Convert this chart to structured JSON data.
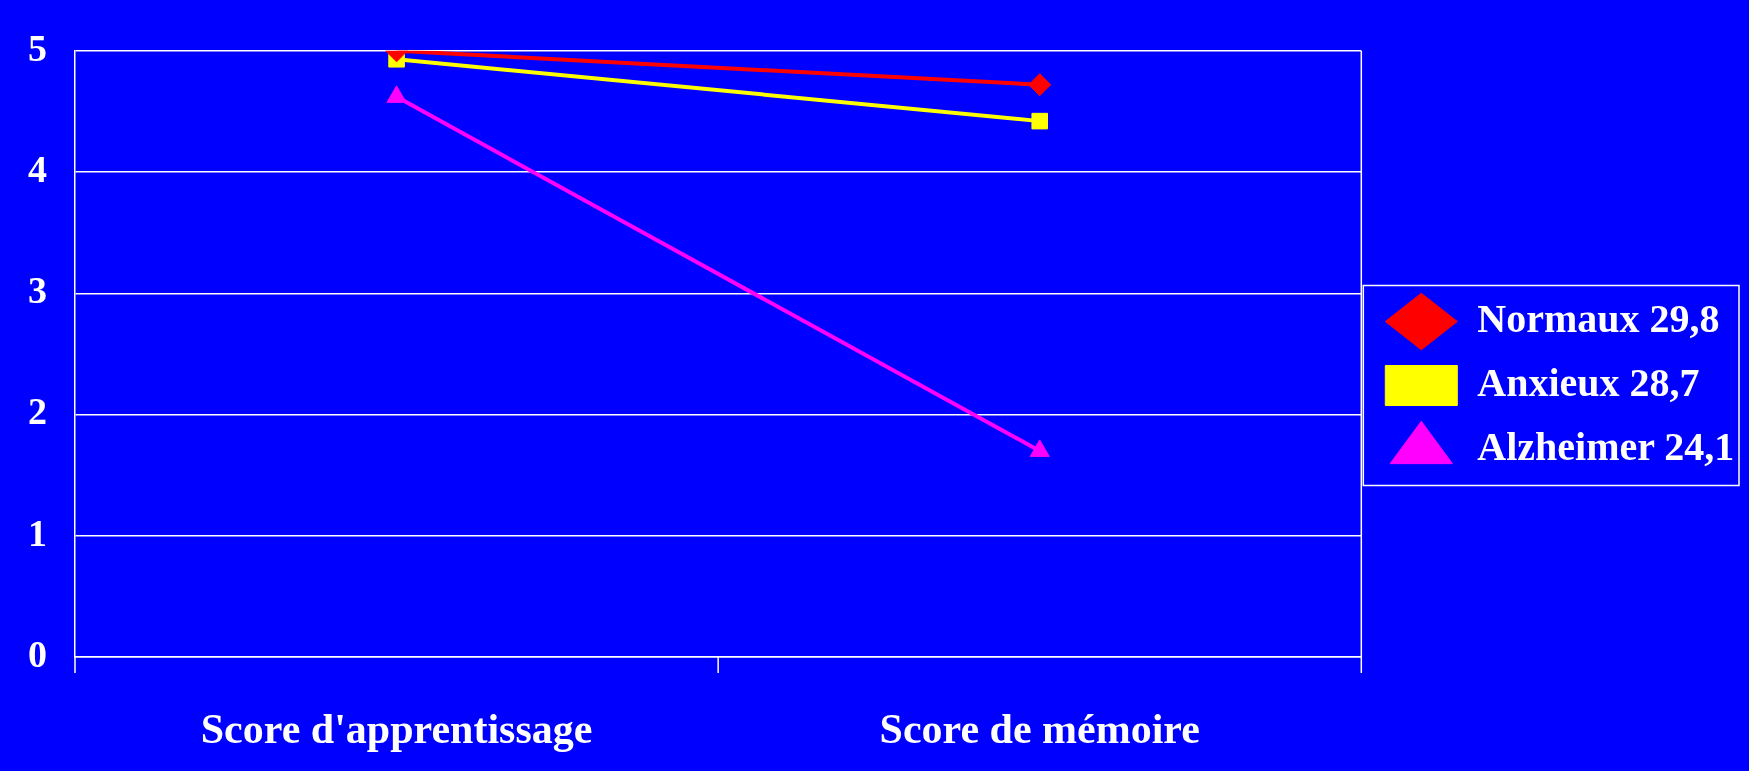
{
  "chart_data": {
    "type": "line",
    "categories": [
      "Score d'apprentissage",
      "Score de mémoire"
    ],
    "series": [
      {
        "name": "Normaux 29,8",
        "color": "#ff0000",
        "marker": "diamond",
        "values": [
          5.0,
          4.72
        ]
      },
      {
        "name": "Anxieux 28,7",
        "color": "#ffff00",
        "marker": "square",
        "values": [
          4.93,
          4.42
        ]
      },
      {
        "name": "Alzheimer 24,1",
        "color": "#ff00ff",
        "marker": "triangle",
        "values": [
          4.62,
          1.7
        ]
      }
    ],
    "ylim": [
      0,
      5
    ],
    "yticks": [
      0,
      1,
      2,
      3,
      4,
      5
    ],
    "grid": "y",
    "legend": "right",
    "line_style": "solid"
  }
}
